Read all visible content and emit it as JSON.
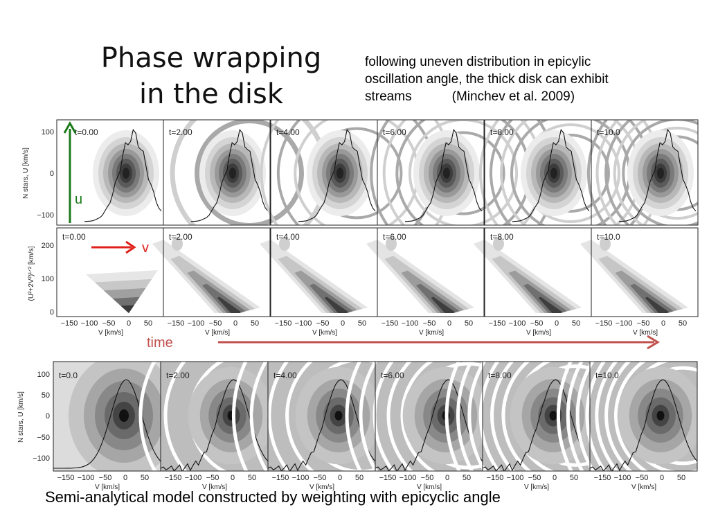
{
  "slide": {
    "title_lines": [
      "Phase wrapping",
      "in the disk"
    ],
    "note_lines": [
      "following uneven distribution in epicylic",
      "oscillation angle, the thick disk can exhibit",
      "streams           (Minchev et al. 2009)"
    ],
    "caption": "Semi-analytical model constructed by weighting with epicyclic angle",
    "arrow_labels": {
      "u": "u",
      "v": "v",
      "time": "time"
    },
    "colors": {
      "u_arrow": "#1a7a1a",
      "v_arrow": "#e0201a",
      "time_arrow": "#c0504d"
    }
  },
  "figure_top": {
    "time_labels": [
      "t=0.00",
      "t=2.00",
      "t=4.00",
      "t=6.00",
      "t=8.00",
      "t=10.0"
    ],
    "row1_ylabel": "N stars, U [km/s]",
    "row1_yticks": [
      "100",
      "0",
      "−100"
    ],
    "row2_ylabel": "(U²+2V²)¹ᐟ² [km/s]",
    "row2_yticks": [
      "200",
      "100",
      "0"
    ],
    "xticks": [
      "−150",
      "−100",
      "−50",
      "0",
      "50"
    ],
    "xlabel": "V [km/s]"
  },
  "figure_bottom": {
    "time_labels": [
      "t=0.0",
      "t=2.00",
      "t=4.00",
      "t=6.00",
      "t=8.00",
      "t=10.0"
    ],
    "ylabel": "N stars, U [km/s]",
    "yticks": [
      "100",
      "50",
      "0",
      "−50",
      "−100"
    ],
    "xticks": [
      "−150",
      "−100",
      "−50",
      "0",
      "50"
    ],
    "xlabel": "V [km/s]"
  }
}
